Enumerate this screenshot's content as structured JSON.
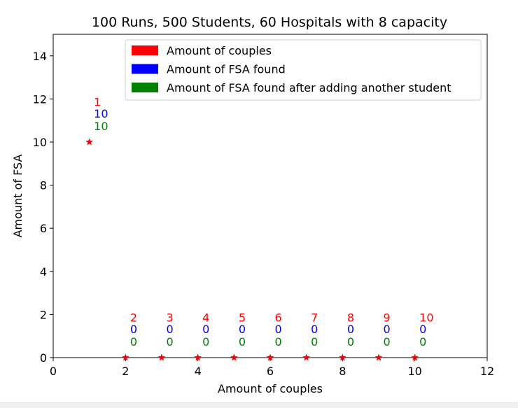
{
  "chart_data": {
    "type": "scatter",
    "title": "100 Runs, 500 Students, 60 Hospitals with 8 capacity",
    "xlabel": "Amount of couples",
    "ylabel": "Amount of FSA",
    "xlim": [
      0,
      12
    ],
    "ylim": [
      0,
      15
    ],
    "xticks": [
      "0",
      "2",
      "4",
      "6",
      "8",
      "10",
      "12"
    ],
    "yticks": [
      "0",
      "2",
      "4",
      "6",
      "8",
      "10",
      "12",
      "14"
    ],
    "marker": "star",
    "marker_color": "#ff0000",
    "grid": false,
    "legend_position": "top-right",
    "legend": [
      {
        "label": "Amount of couples",
        "color": "#ff0000"
      },
      {
        "label": "Amount of FSA found",
        "color": "#0000ff"
      },
      {
        "label": "Amount of FSA found after adding another student",
        "color": "#008000"
      }
    ],
    "points": [
      {
        "x": 1,
        "y": 10,
        "couples": "1",
        "fsa": "10",
        "fsa_after": "10"
      },
      {
        "x": 2,
        "y": 0,
        "couples": "2",
        "fsa": "0",
        "fsa_after": "0"
      },
      {
        "x": 3,
        "y": 0,
        "couples": "3",
        "fsa": "0",
        "fsa_after": "0"
      },
      {
        "x": 4,
        "y": 0,
        "couples": "4",
        "fsa": "0",
        "fsa_after": "0"
      },
      {
        "x": 5,
        "y": 0,
        "couples": "5",
        "fsa": "0",
        "fsa_after": "0"
      },
      {
        "x": 6,
        "y": 0,
        "couples": "6",
        "fsa": "0",
        "fsa_after": "0"
      },
      {
        "x": 7,
        "y": 0,
        "couples": "7",
        "fsa": "0",
        "fsa_after": "0"
      },
      {
        "x": 8,
        "y": 0,
        "couples": "8",
        "fsa": "0",
        "fsa_after": "0"
      },
      {
        "x": 9,
        "y": 0,
        "couples": "9",
        "fsa": "0",
        "fsa_after": "0"
      },
      {
        "x": 10,
        "y": 0,
        "couples": "10",
        "fsa": "0",
        "fsa_after": "0"
      }
    ]
  }
}
